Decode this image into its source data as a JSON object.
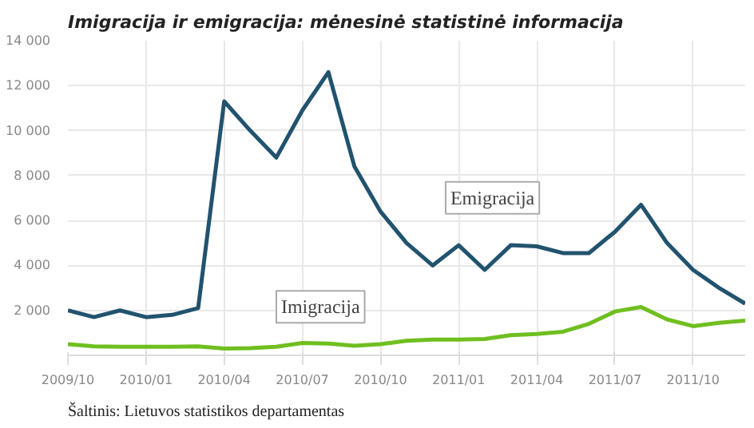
{
  "chart_data": {
    "type": "line",
    "title": "Imigracija ir emigracija: mėnesinė statistinė informacija",
    "x": [
      "2009-10",
      "2009-11",
      "2009-12",
      "2010-01",
      "2010-02",
      "2010-03",
      "2010-04",
      "2010-05",
      "2010-06",
      "2010-07",
      "2010-08",
      "2010-09",
      "2010-10",
      "2010-11",
      "2010-12",
      "2011-01",
      "2011-02",
      "2011-03",
      "2011-04",
      "2011-05",
      "2011-06",
      "2011-07",
      "2011-08",
      "2011-09",
      "2011-10",
      "2011-11",
      "2011-12"
    ],
    "series": [
      {
        "name": "Emigracija",
        "color": "#21536e",
        "values": [
          2000,
          1700,
          2000,
          1700,
          1800,
          2100,
          11300,
          10000,
          8800,
          10900,
          12600,
          8400,
          6400,
          5000,
          4000,
          4900,
          3800,
          4900,
          4850,
          4550,
          4550,
          5500,
          6700,
          5000,
          3800,
          3000,
          2300
        ]
      },
      {
        "name": "Imigracija",
        "color": "#6fbf1f",
        "values": [
          500,
          400,
          380,
          380,
          380,
          400,
          300,
          320,
          380,
          550,
          520,
          430,
          500,
          650,
          700,
          700,
          730,
          900,
          950,
          1050,
          1400,
          1950,
          2150,
          1600,
          1300,
          1450,
          1550
        ]
      }
    ],
    "xlim": [
      "2009-10",
      "2011-12"
    ],
    "xticks": [
      {
        "value": "2009-10",
        "label": "2009/10"
      },
      {
        "value": "2010-01",
        "label": "2010/01"
      },
      {
        "value": "2010-04",
        "label": "2010/04"
      },
      {
        "value": "2010-07",
        "label": "2010/07"
      },
      {
        "value": "2010-10",
        "label": "2010/10"
      },
      {
        "value": "2011-01",
        "label": "2011/01"
      },
      {
        "value": "2011-04",
        "label": "2011/04"
      },
      {
        "value": "2011-07",
        "label": "2011/07"
      },
      {
        "value": "2011-10",
        "label": "2011/10"
      }
    ],
    "ylim": [
      0,
      14000
    ],
    "yticks": [
      {
        "value": 2000,
        "label": "2 000"
      },
      {
        "value": 4000,
        "label": "4 000"
      },
      {
        "value": 6000,
        "label": "6 000"
      },
      {
        "value": 8000,
        "label": "8 000"
      },
      {
        "value": 10000,
        "label": "10 000"
      },
      {
        "value": 12000,
        "label": "12 000"
      },
      {
        "value": 14000,
        "label": "14 000"
      }
    ],
    "grid": true,
    "legend": false,
    "marker": "none",
    "line_style": "solid",
    "annotations": [
      "Šaltinis: Lietuvos statistikos departamentas"
    ]
  }
}
